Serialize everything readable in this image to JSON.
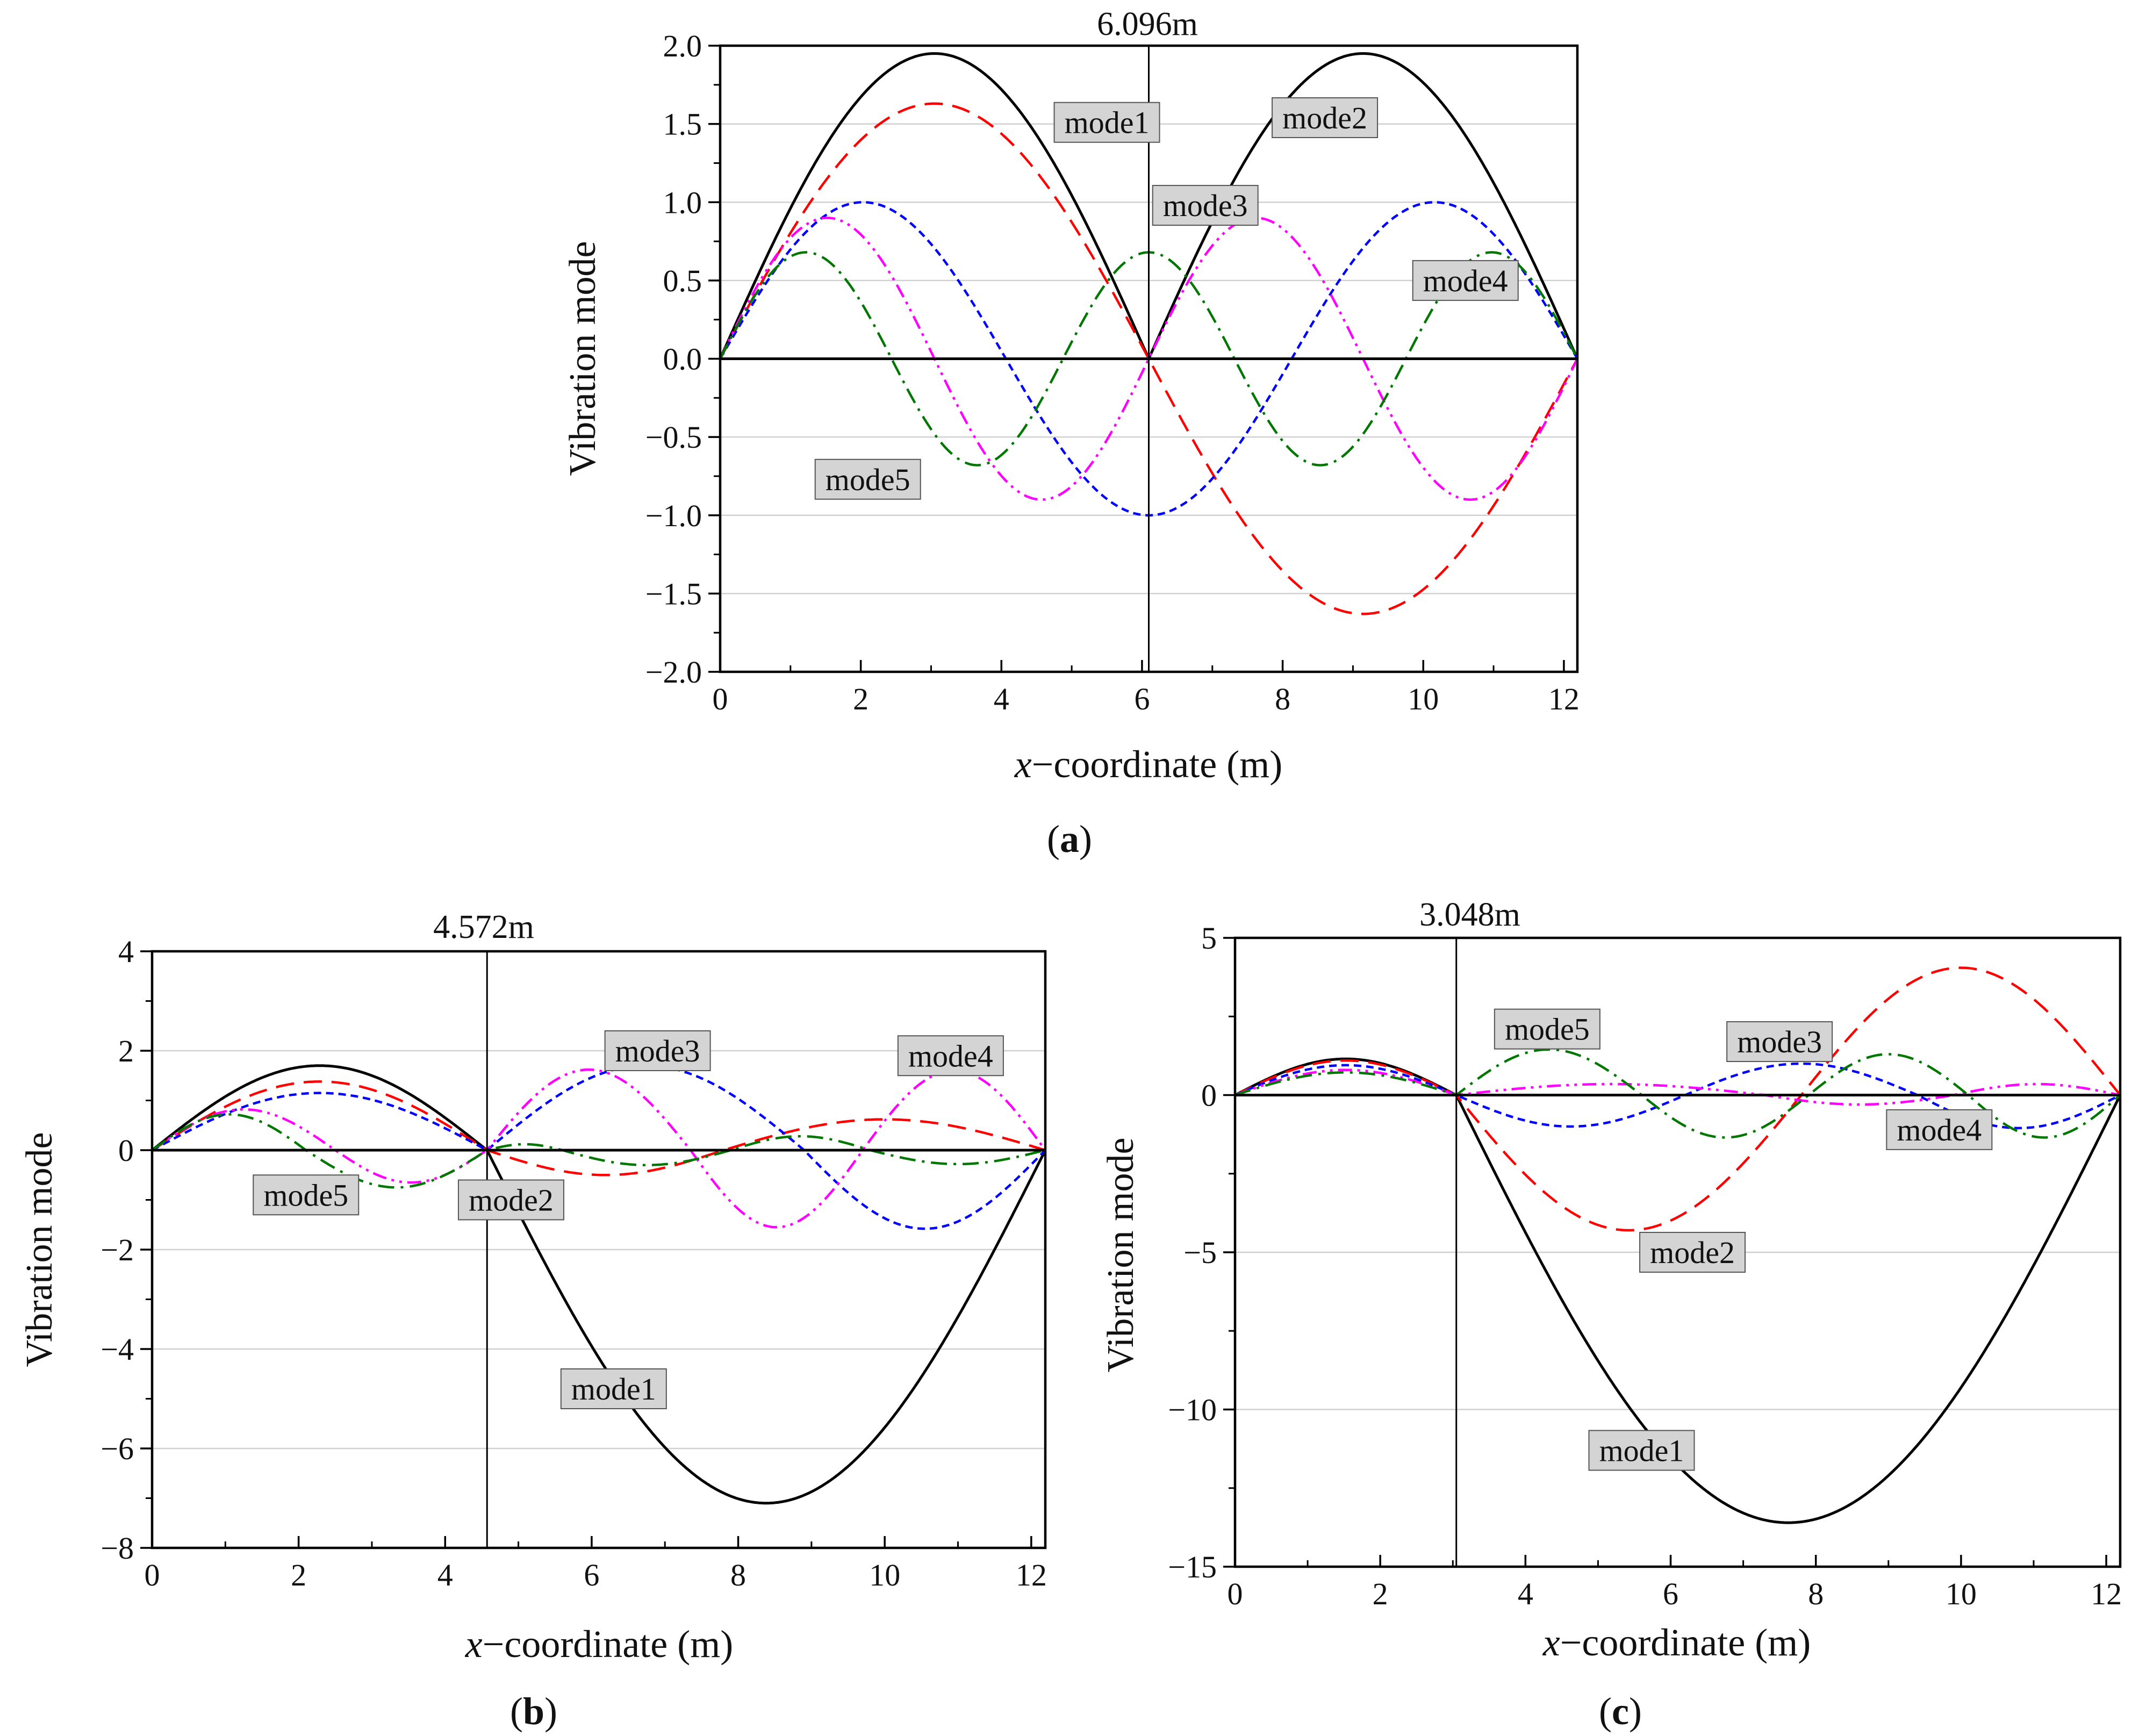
{
  "chart_data": [
    {
      "type": "line",
      "panel_label": "a",
      "marker_label": "6.096m",
      "marker_x": 6.096,
      "support_x": 6.096,
      "xlabel_italic": "x",
      "xlabel_rest": "−coordinate (m)",
      "ylabel": "Vibration mode",
      "xlim": [
        0,
        12.192
      ],
      "ylim": [
        -2.0,
        2.0
      ],
      "xticks": [
        0,
        2,
        4,
        6,
        8,
        10,
        12
      ],
      "xtick_labels": [
        "0",
        "2",
        "4",
        "6",
        "8",
        "10",
        "12"
      ],
      "yticks": [
        -2.0,
        -1.5,
        -1.0,
        -0.5,
        0.0,
        0.5,
        1.0,
        1.5,
        2.0
      ],
      "ytick_labels": [
        "−2.0",
        "−1.5",
        "−1.0",
        "−0.5",
        "0.0",
        "0.5",
        "1.0",
        "1.5",
        "2.0"
      ],
      "grid": "horizontal",
      "series": [
        {
          "name": "mode1",
          "color": "#000000",
          "dash": "solid",
          "amplitudes": [
            1.95,
            1.95
          ],
          "half_waves": [
            1,
            1
          ]
        },
        {
          "name": "mode2",
          "color": "#ff0000",
          "dash": "dash",
          "amplitudes": [
            1.63,
            1.63
          ],
          "half_waves": [
            2,
            2
          ]
        },
        {
          "name": "mode3",
          "color": "#0000ff",
          "dash": "short-dash",
          "amplitudes": [
            1.0,
            1.0
          ],
          "half_waves": [
            3,
            3
          ]
        },
        {
          "name": "mode4",
          "color": "#ff00ff",
          "dash": "dash-dot-dot",
          "amplitudes": [
            0.9,
            0.9
          ],
          "half_waves": [
            4,
            4
          ]
        },
        {
          "name": "mode5",
          "color": "#007700",
          "dash": "dash-dot",
          "amplitudes": [
            0.68,
            0.68
          ],
          "half_waves": [
            5,
            5
          ]
        }
      ],
      "labels": [
        {
          "text": "mode1",
          "x": 5.5,
          "y": 1.51
        },
        {
          "text": "mode2",
          "x": 8.6,
          "y": 1.54
        },
        {
          "text": "mode3",
          "x": 6.9,
          "y": 0.98
        },
        {
          "text": "mode4",
          "x": 10.6,
          "y": 0.5
        },
        {
          "text": "mode5",
          "x": 2.1,
          "y": -0.77
        }
      ]
    },
    {
      "type": "line",
      "panel_label": "b",
      "marker_label": "4.572m",
      "marker_x": 4.572,
      "support_x": 4.572,
      "xlabel_italic": "x",
      "xlabel_rest": "−coordinate (m)",
      "ylabel": "Vibration mode",
      "xlim": [
        0,
        12.192
      ],
      "ylim": [
        -8,
        4
      ],
      "xticks": [
        0,
        2,
        4,
        6,
        8,
        10,
        12
      ],
      "xtick_labels": [
        "0",
        "2",
        "4",
        "6",
        "8",
        "10",
        "12"
      ],
      "yticks": [
        -8,
        -6,
        -4,
        -2,
        0,
        2,
        4
      ],
      "ytick_labels": [
        "−8",
        "−6",
        "−4",
        "−2",
        "0",
        "2",
        "4"
      ],
      "grid": "horizontal",
      "series": [
        {
          "name": "mode1",
          "color": "#000000",
          "dash": "solid",
          "amplitudes": [
            1.7,
            -7.1
          ],
          "half_waves": [
            1,
            1
          ]
        },
        {
          "name": "mode2",
          "color": "#ff0000",
          "dash": "dash",
          "amplitudes": [
            1.38,
            -0.5,
            0.62
          ],
          "half_waves": [
            1,
            1,
            1
          ],
          "breaks": [
            4.572,
            7.8
          ]
        },
        {
          "name": "mode3",
          "color": "#0000ff",
          "dash": "short-dash",
          "amplitudes": [
            1.15,
            1.7,
            -1.58
          ],
          "half_waves": [
            1,
            1,
            1
          ],
          "breaks": [
            4.572,
            8.9
          ]
        },
        {
          "name": "mode4",
          "color": "#ff00ff",
          "dash": "dash-dot-dot",
          "amplitudes": [
            0.82,
            -0.65,
            1.62,
            -1.55,
            1.6
          ],
          "half_waves": [
            1,
            1,
            1,
            1,
            1
          ],
          "breaks": [
            2.5,
            4.572,
            7.35,
            9.7
          ]
        },
        {
          "name": "mode5",
          "color": "#007700",
          "dash": "dash-dot",
          "amplitudes": [
            0.72,
            -0.75,
            0.12,
            -0.3,
            0.28,
            -0.28
          ],
          "half_waves": [
            1,
            1,
            1,
            1,
            1,
            1
          ],
          "breaks": [
            2.1,
            4.572,
            5.6,
            7.9,
            9.8
          ]
        }
      ],
      "labels": [
        {
          "text": "mode1",
          "x": 6.3,
          "y": -4.8
        },
        {
          "text": "mode2",
          "x": 4.9,
          "y": -1.0
        },
        {
          "text": "mode3",
          "x": 6.9,
          "y": 2.0
        },
        {
          "text": "mode4",
          "x": 10.9,
          "y": 1.9
        },
        {
          "text": "mode5",
          "x": 2.1,
          "y": -0.9
        }
      ]
    },
    {
      "type": "line",
      "panel_label": "c",
      "marker_label": "3.048m",
      "marker_x": 3.048,
      "support_x": 3.048,
      "xlabel_italic": "x",
      "xlabel_rest": "−coordinate (m)",
      "ylabel": "Vibration mode",
      "xlim": [
        0,
        12.192
      ],
      "ylim": [
        -15,
        5
      ],
      "xticks": [
        0,
        2,
        4,
        6,
        8,
        10,
        12
      ],
      "xtick_labels": [
        "0",
        "2",
        "4",
        "6",
        "8",
        "10",
        "12"
      ],
      "yticks": [
        -15,
        -10,
        -5,
        0,
        5
      ],
      "ytick_labels": [
        "−15",
        "−10",
        "−5",
        "0",
        "5"
      ],
      "grid": "horizontal",
      "series": [
        {
          "name": "mode1",
          "color": "#000000",
          "dash": "solid",
          "amplitudes": [
            1.15,
            -13.6
          ],
          "half_waves": [
            1,
            1
          ]
        },
        {
          "name": "mode2",
          "color": "#ff0000",
          "dash": "dash",
          "amplitudes": [
            1.1,
            -4.3,
            4.05
          ],
          "half_waves": [
            1,
            1,
            1
          ],
          "breaks": [
            3.048,
            7.8
          ]
        },
        {
          "name": "mode3",
          "color": "#0000ff",
          "dash": "short-dash",
          "amplitudes": [
            0.95,
            -1.0,
            1.0,
            -1.05
          ],
          "half_waves": [
            1,
            1,
            1,
            1
          ],
          "breaks": [
            3.048,
            6.2,
            9.4
          ]
        },
        {
          "name": "mode4",
          "color": "#ff00ff",
          "dash": "dash-dot-dot",
          "amplitudes": [
            0.8,
            0.35,
            -0.3,
            0.35
          ],
          "half_waves": [
            1,
            1,
            1,
            1
          ],
          "breaks": [
            3.048,
            7.3,
            9.9
          ]
        },
        {
          "name": "mode5",
          "color": "#007700",
          "dash": "dash-dot",
          "amplitudes": [
            0.72,
            1.45,
            -1.35,
            1.3,
            -1.35
          ],
          "half_waves": [
            1,
            1,
            1,
            1,
            1
          ],
          "breaks": [
            3.048,
            5.6,
            7.9,
            10.1
          ]
        }
      ],
      "labels": [
        {
          "text": "mode1",
          "x": 5.6,
          "y": -11.3
        },
        {
          "text": "mode2",
          "x": 6.3,
          "y": -5.0
        },
        {
          "text": "mode3",
          "x": 7.5,
          "y": 1.7
        },
        {
          "text": "mode4",
          "x": 9.7,
          "y": -1.1
        },
        {
          "text": "mode5",
          "x": 4.3,
          "y": 2.1
        }
      ]
    }
  ]
}
